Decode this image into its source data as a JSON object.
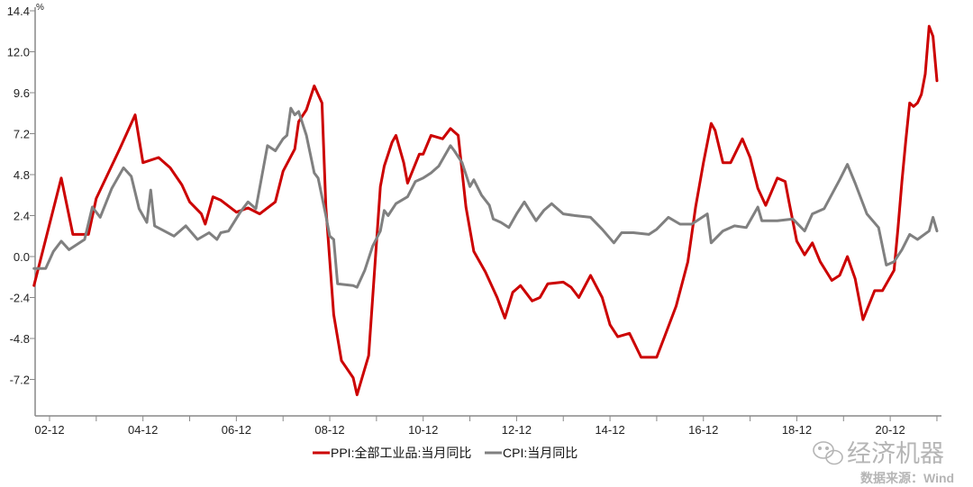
{
  "chart_data": {
    "type": "line",
    "title": "",
    "xlabel": "",
    "ylabel": "%",
    "ylim": [
      -9.3,
      14.4
    ],
    "yticks": [
      "14.4",
      "12.0",
      "9.6",
      "7.2",
      "4.8",
      "2.4",
      "0.0",
      "-2.4",
      "-4.8",
      "-7.2"
    ],
    "xlim": [
      "2002-08",
      "2021-12"
    ],
    "xticks": [
      "02-12",
      "04-12",
      "06-12",
      "08-12",
      "10-12",
      "12-12",
      "14-12",
      "16-12",
      "18-12",
      "20-12"
    ],
    "grid": false,
    "legend_position": "bottom",
    "series": [
      {
        "name": "PPI:全部工业品:当月同比",
        "color": "#cc0000",
        "points": [
          [
            "2002-08",
            -1.7
          ],
          [
            "2003-03",
            4.6
          ],
          [
            "2003-06",
            1.3
          ],
          [
            "2003-10",
            1.3
          ],
          [
            "2003-12",
            3.4
          ],
          [
            "2004-06",
            6.3
          ],
          [
            "2004-10",
            8.3
          ],
          [
            "2004-12",
            5.5
          ],
          [
            "2005-04",
            5.8
          ],
          [
            "2005-07",
            5.2
          ],
          [
            "2005-10",
            4.2
          ],
          [
            "2005-12",
            3.2
          ],
          [
            "2006-03",
            2.5
          ],
          [
            "2006-04",
            1.9
          ],
          [
            "2006-06",
            3.5
          ],
          [
            "2006-08",
            3.3
          ],
          [
            "2006-12",
            2.6
          ],
          [
            "2007-03",
            2.85
          ],
          [
            "2007-06",
            2.5
          ],
          [
            "2007-10",
            3.2
          ],
          [
            "2007-12",
            5.0
          ],
          [
            "2008-03",
            6.3
          ],
          [
            "2008-04",
            7.9
          ],
          [
            "2008-06",
            8.6
          ],
          [
            "2008-08",
            10.0
          ],
          [
            "2008-10",
            9.0
          ],
          [
            "2008-11",
            2.9
          ],
          [
            "2009-01",
            -3.4
          ],
          [
            "2009-03",
            -6.1
          ],
          [
            "2009-06",
            -7.1
          ],
          [
            "2009-07",
            -8.1
          ],
          [
            "2009-10",
            -5.8
          ],
          [
            "2010-01",
            4.1
          ],
          [
            "2010-02",
            5.3
          ],
          [
            "2010-04",
            6.7
          ],
          [
            "2010-05",
            7.1
          ],
          [
            "2010-07",
            5.5
          ],
          [
            "2010-08",
            4.3
          ],
          [
            "2010-11",
            6.0
          ],
          [
            "2010-12",
            6.0
          ],
          [
            "2011-02",
            7.1
          ],
          [
            "2011-05",
            6.9
          ],
          [
            "2011-07",
            7.5
          ],
          [
            "2011-09",
            7.1
          ],
          [
            "2011-11",
            2.9
          ],
          [
            "2012-01",
            0.3
          ],
          [
            "2012-04",
            -0.9
          ],
          [
            "2012-07",
            -2.4
          ],
          [
            "2012-09",
            -3.6
          ],
          [
            "2012-11",
            -2.1
          ],
          [
            "2013-01",
            -1.7
          ],
          [
            "2013-04",
            -2.6
          ],
          [
            "2013-06",
            -2.4
          ],
          [
            "2013-08",
            -1.6
          ],
          [
            "2013-12",
            -1.5
          ],
          [
            "2014-02",
            -1.8
          ],
          [
            "2014-04",
            -2.4
          ],
          [
            "2014-07",
            -1.1
          ],
          [
            "2014-10",
            -2.4
          ],
          [
            "2014-12",
            -4.0
          ],
          [
            "2015-02",
            -4.7
          ],
          [
            "2015-05",
            -4.5
          ],
          [
            "2015-08",
            -5.9
          ],
          [
            "2015-12",
            -5.9
          ],
          [
            "2016-02",
            -4.7
          ],
          [
            "2016-05",
            -2.9
          ],
          [
            "2016-08",
            -0.3
          ],
          [
            "2016-10",
            2.9
          ],
          [
            "2016-12",
            5.5
          ],
          [
            "2017-02",
            7.8
          ],
          [
            "2017-03",
            7.4
          ],
          [
            "2017-05",
            5.5
          ],
          [
            "2017-07",
            5.5
          ],
          [
            "2017-10",
            6.9
          ],
          [
            "2017-12",
            5.8
          ],
          [
            "2018-02",
            4.0
          ],
          [
            "2018-04",
            3.0
          ],
          [
            "2018-07",
            4.6
          ],
          [
            "2018-09",
            4.4
          ],
          [
            "2018-10",
            3.2
          ],
          [
            "2018-12",
            0.9
          ],
          [
            "2019-02",
            0.1
          ],
          [
            "2019-04",
            0.8
          ],
          [
            "2019-06",
            -0.3
          ],
          [
            "2019-09",
            -1.4
          ],
          [
            "2019-11",
            -1.1
          ],
          [
            "2020-01",
            0.0
          ],
          [
            "2020-03",
            -1.3
          ],
          [
            "2020-05",
            -3.7
          ],
          [
            "2020-08",
            -2.0
          ],
          [
            "2020-10",
            -2.0
          ],
          [
            "2021-01",
            -0.8
          ],
          [
            "2021-02",
            1.7
          ],
          [
            "2021-03",
            4.4
          ],
          [
            "2021-04",
            6.8
          ],
          [
            "2021-05",
            9.0
          ],
          [
            "2021-06",
            8.8
          ],
          [
            "2021-07",
            9.0
          ],
          [
            "2021-08",
            9.5
          ],
          [
            "2021-09",
            10.7
          ],
          [
            "2021-10",
            13.5
          ],
          [
            "2021-11",
            12.9
          ],
          [
            "2021-12",
            10.3
          ]
        ]
      },
      {
        "name": "CPI:当月同比",
        "color": "#808080",
        "points": [
          [
            "2002-08",
            -0.7
          ],
          [
            "2002-11",
            -0.7
          ],
          [
            "2003-01",
            0.3
          ],
          [
            "2003-03",
            0.9
          ],
          [
            "2003-05",
            0.4
          ],
          [
            "2003-09",
            1.0
          ],
          [
            "2003-11",
            2.9
          ],
          [
            "2004-01",
            2.3
          ],
          [
            "2004-04",
            4.0
          ],
          [
            "2004-07",
            5.2
          ],
          [
            "2004-09",
            4.7
          ],
          [
            "2004-11",
            2.8
          ],
          [
            "2005-01",
            2.0
          ],
          [
            "2005-02",
            3.9
          ],
          [
            "2005-03",
            1.8
          ],
          [
            "2005-08",
            1.2
          ],
          [
            "2005-11",
            1.8
          ],
          [
            "2006-02",
            1.0
          ],
          [
            "2006-05",
            1.4
          ],
          [
            "2006-07",
            1.0
          ],
          [
            "2006-08",
            1.4
          ],
          [
            "2006-10",
            1.5
          ],
          [
            "2007-01",
            2.6
          ],
          [
            "2007-03",
            3.2
          ],
          [
            "2007-05",
            2.8
          ],
          [
            "2007-08",
            6.5
          ],
          [
            "2007-10",
            6.2
          ],
          [
            "2007-12",
            6.9
          ],
          [
            "2008-01",
            7.1
          ],
          [
            "2008-02",
            8.7
          ],
          [
            "2008-03",
            8.3
          ],
          [
            "2008-04",
            8.5
          ],
          [
            "2008-06",
            7.1
          ],
          [
            "2008-08",
            4.9
          ],
          [
            "2008-09",
            4.6
          ],
          [
            "2008-11",
            2.4
          ],
          [
            "2008-12",
            1.2
          ],
          [
            "2009-01",
            1.0
          ],
          [
            "2009-02",
            -1.6
          ],
          [
            "2009-06",
            -1.7
          ],
          [
            "2009-07",
            -1.8
          ],
          [
            "2009-09",
            -0.8
          ],
          [
            "2009-11",
            0.6
          ],
          [
            "2010-01",
            1.5
          ],
          [
            "2010-02",
            2.7
          ],
          [
            "2010-03",
            2.4
          ],
          [
            "2010-05",
            3.1
          ],
          [
            "2010-08",
            3.5
          ],
          [
            "2010-10",
            4.4
          ],
          [
            "2010-12",
            4.6
          ],
          [
            "2011-02",
            4.9
          ],
          [
            "2011-04",
            5.3
          ],
          [
            "2011-07",
            6.5
          ],
          [
            "2011-08",
            6.2
          ],
          [
            "2011-10",
            5.5
          ],
          [
            "2011-12",
            4.1
          ],
          [
            "2012-01",
            4.5
          ],
          [
            "2012-03",
            3.6
          ],
          [
            "2012-05",
            3.0
          ],
          [
            "2012-06",
            2.2
          ],
          [
            "2012-08",
            2.0
          ],
          [
            "2012-10",
            1.7
          ],
          [
            "2012-12",
            2.5
          ],
          [
            "2013-02",
            3.2
          ],
          [
            "2013-05",
            2.1
          ],
          [
            "2013-07",
            2.7
          ],
          [
            "2013-09",
            3.1
          ],
          [
            "2013-12",
            2.5
          ],
          [
            "2014-03",
            2.4
          ],
          [
            "2014-07",
            2.3
          ],
          [
            "2014-10",
            1.6
          ],
          [
            "2015-01",
            0.8
          ],
          [
            "2015-03",
            1.4
          ],
          [
            "2015-06",
            1.4
          ],
          [
            "2015-10",
            1.3
          ],
          [
            "2015-12",
            1.6
          ],
          [
            "2016-03",
            2.3
          ],
          [
            "2016-06",
            1.9
          ],
          [
            "2016-09",
            1.9
          ],
          [
            "2017-01",
            2.5
          ],
          [
            "2017-02",
            0.8
          ],
          [
            "2017-05",
            1.5
          ],
          [
            "2017-08",
            1.8
          ],
          [
            "2017-11",
            1.7
          ],
          [
            "2018-02",
            2.9
          ],
          [
            "2018-03",
            2.1
          ],
          [
            "2018-07",
            2.1
          ],
          [
            "2018-11",
            2.2
          ],
          [
            "2019-02",
            1.5
          ],
          [
            "2019-04",
            2.5
          ],
          [
            "2019-07",
            2.8
          ],
          [
            "2019-11",
            4.5
          ],
          [
            "2020-01",
            5.4
          ],
          [
            "2020-03",
            4.3
          ],
          [
            "2020-06",
            2.5
          ],
          [
            "2020-09",
            1.7
          ],
          [
            "2020-11",
            -0.5
          ],
          [
            "2021-01",
            -0.3
          ],
          [
            "2021-03",
            0.4
          ],
          [
            "2021-05",
            1.3
          ],
          [
            "2021-07",
            1.0
          ],
          [
            "2021-10",
            1.5
          ],
          [
            "2021-11",
            2.3
          ],
          [
            "2021-12",
            1.5
          ]
        ]
      }
    ]
  },
  "watermark": {
    "brand": "经济机器",
    "icon": "wechat-icon",
    "source": "数据来源：Wind"
  }
}
